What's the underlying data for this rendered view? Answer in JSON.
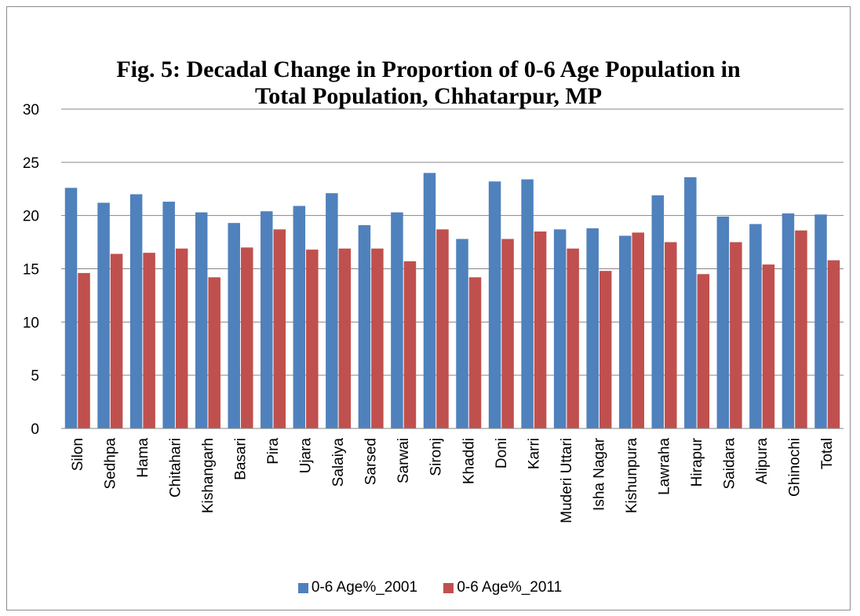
{
  "chart_data": {
    "type": "bar",
    "title_line1": "Fig. 5: Decadal Change in Proportion of 0-6 Age Population in",
    "title_line2": "Total Population, Chhatarpur, MP",
    "xlabel": "",
    "ylabel": "",
    "ylim": [
      0,
      30
    ],
    "yticks": [
      "0",
      "5",
      "10",
      "15",
      "20",
      "25",
      "30"
    ],
    "grid": true,
    "legend_position": "bottom",
    "categories": [
      "Silon",
      "Sedhpa",
      "Hama",
      "Chitahari",
      "Kishangarh",
      "Basari",
      "Pira",
      "Ujara",
      "Salaiya",
      "Sarsed",
      "Sarwai",
      "Sironj",
      "Khaddi",
      "Doni",
      "Karri",
      "Muderi Uttari",
      "Isha Nagar",
      "Kishunpura",
      "Lawraha",
      "Hirapur",
      "Saidara",
      "Alipura",
      "Ghinochi",
      "Total"
    ],
    "series": [
      {
        "name": "0-6 Age%_2001",
        "color": "#4f81bd",
        "values": [
          22.6,
          21.2,
          22.0,
          21.3,
          20.3,
          19.3,
          20.4,
          20.9,
          22.1,
          19.1,
          20.3,
          24.0,
          17.8,
          23.2,
          23.4,
          18.7,
          18.8,
          18.1,
          21.9,
          23.6,
          19.9,
          19.2,
          20.2,
          20.1
        ]
      },
      {
        "name": "0-6 Age%_2011",
        "color": "#c0504d",
        "values": [
          14.6,
          16.4,
          16.5,
          16.9,
          14.2,
          17.0,
          18.7,
          16.8,
          16.9,
          16.9,
          15.7,
          18.7,
          14.2,
          17.8,
          18.5,
          16.9,
          14.8,
          18.4,
          17.5,
          14.5,
          17.5,
          15.4,
          18.6,
          15.8
        ]
      }
    ]
  }
}
